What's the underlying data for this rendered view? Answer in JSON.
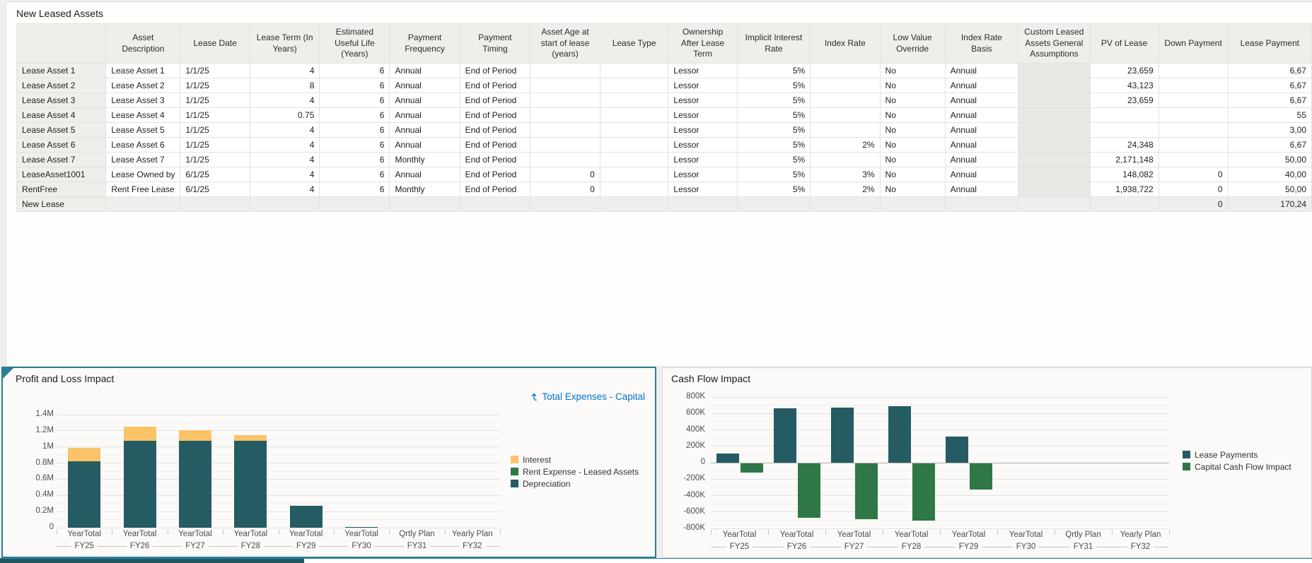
{
  "table": {
    "title": "New Leased Assets",
    "columns": [
      "",
      "Asset Description",
      "Lease Date",
      "Lease Term (In Years)",
      "Estimated Useful Life (Years)",
      "Payment Frequency",
      "Payment Timing",
      "Asset Age at start of lease (years)",
      "Lease Type",
      "Ownership After Lease Term",
      "Implicit Interest Rate",
      "Index Rate",
      "Low Value Override",
      "Index Rate Basis",
      "Custom Leased Assets General Assumptions",
      "PV of Lease",
      "Down Payment",
      "Lease Payment"
    ],
    "rows": [
      {
        "name": "Lease Asset 1",
        "disabled": false,
        "cells": [
          "Lease Asset 1",
          "1/1/25",
          "4",
          "6",
          "Annual",
          "End of Period",
          "",
          "",
          "Lessor",
          "5%",
          "",
          "No",
          "Annual",
          "",
          "23,659",
          "",
          "6,67"
        ]
      },
      {
        "name": "Lease Asset 2",
        "disabled": false,
        "cells": [
          "Lease Asset 2",
          "1/1/25",
          "8",
          "6",
          "Annual",
          "End of Period",
          "",
          "",
          "Lessor",
          "5%",
          "",
          "No",
          "Annual",
          "",
          "43,123",
          "",
          "6,67"
        ]
      },
      {
        "name": "Lease Asset 3",
        "disabled": false,
        "cells": [
          "Lease Asset 3",
          "1/1/25",
          "4",
          "6",
          "Annual",
          "End of Period",
          "",
          "",
          "Lessor",
          "5%",
          "",
          "No",
          "Annual",
          "",
          "23,659",
          "",
          "6,67"
        ]
      },
      {
        "name": "Lease Asset 4",
        "disabled": false,
        "cells": [
          "Lease Asset 4",
          "1/1/25",
          "0.75",
          "6",
          "Annual",
          "End of Period",
          "",
          "",
          "Lessor",
          "5%",
          "",
          "No",
          "Annual",
          "",
          "",
          "",
          "55"
        ]
      },
      {
        "name": "Lease Asset 5",
        "disabled": false,
        "cells": [
          "Lease Asset 5",
          "1/1/25",
          "4",
          "6",
          "Annual",
          "End of Period",
          "",
          "",
          "Lessor",
          "5%",
          "",
          "No",
          "Annual",
          "",
          "",
          "",
          "3,00"
        ]
      },
      {
        "name": "Lease Asset 6",
        "disabled": false,
        "cells": [
          "Lease Asset 6",
          "1/1/25",
          "4",
          "6",
          "Annual",
          "End of Period",
          "",
          "",
          "Lessor",
          "5%",
          "2%",
          "No",
          "Annual",
          "",
          "24,348",
          "",
          "6,67"
        ]
      },
      {
        "name": "Lease Asset 7",
        "disabled": false,
        "cells": [
          "Lease Asset 7",
          "1/1/25",
          "4",
          "6",
          "Monthly",
          "End of Period",
          "",
          "",
          "Lessor",
          "5%",
          "",
          "No",
          "Annual",
          "",
          "2,171,148",
          "",
          "50,00"
        ]
      },
      {
        "name": "LeaseAsset1001",
        "disabled": false,
        "cells": [
          "Lease Owned by",
          "6/1/25",
          "4",
          "6",
          "Annual",
          "End of Period",
          "0",
          "",
          "Lessor",
          "5%",
          "3%",
          "No",
          "Annual",
          "",
          "148,082",
          "0",
          "40,00"
        ]
      },
      {
        "name": "RentFree",
        "disabled": false,
        "cells": [
          "Rent Free Lease",
          "6/1/25",
          "4",
          "6",
          "Monthly",
          "End of Period",
          "0",
          "",
          "Lessor",
          "5%",
          "2%",
          "No",
          "Annual",
          "",
          "1,938,722",
          "0",
          "50,00"
        ]
      },
      {
        "name": "New Lease",
        "disabled": true,
        "cells": [
          "",
          "",
          "",
          "",
          "",
          "",
          "",
          "",
          "",
          "",
          "",
          "",
          "",
          "",
          "",
          "0",
          "170,24"
        ]
      }
    ]
  },
  "chart_data": [
    {
      "type": "stacked-bar",
      "title": "Profit and Loss Impact",
      "context_link": "Total Expenses - Capital",
      "categories": [
        "FY25",
        "FY26",
        "FY27",
        "FY28",
        "FY29",
        "FY30",
        "FY31",
        "FY32"
      ],
      "category_periods": [
        "YearTotal",
        "YearTotal",
        "YearTotal",
        "YearTotal",
        "YearTotal",
        "YearTotal",
        "Qrtly Plan",
        "Yearly Plan"
      ],
      "series": [
        {
          "name": "Interest",
          "color": "#fac36a",
          "values": [
            165000,
            175000,
            125000,
            65000,
            0,
            0,
            0,
            0
          ]
        },
        {
          "name": "Rent Expense - Leased Assets",
          "color": "#2f7746",
          "values": [
            0,
            0,
            0,
            0,
            0,
            0,
            0,
            0
          ]
        },
        {
          "name": "Depreciation",
          "color": "#255c63",
          "values": [
            820000,
            1080000,
            1080000,
            1080000,
            270000,
            10000,
            0,
            0
          ]
        }
      ],
      "ylim": [
        0,
        1400000
      ],
      "ytick_step": 200000,
      "ytick_labels": [
        "1.4M",
        "1.2M",
        "1M",
        "0.8M",
        "0.6M",
        "0.4M",
        "0.2M",
        "0"
      ],
      "legend_position": "right",
      "grid": true
    },
    {
      "type": "bar",
      "title": "Cash Flow Impact",
      "categories": [
        "FY25",
        "FY26",
        "FY27",
        "FY28",
        "FY29",
        "FY30",
        "FY31",
        "FY32"
      ],
      "category_periods": [
        "YearTotal",
        "YearTotal",
        "YearTotal",
        "YearTotal",
        "YearTotal",
        "YearTotal",
        "Qrtly Plan",
        "Yearly Plan"
      ],
      "series": [
        {
          "name": "Lease Payments",
          "color": "#255c63",
          "values": [
            115000,
            660000,
            675000,
            690000,
            315000,
            0,
            0,
            0
          ]
        },
        {
          "name": "Capital Cash Flow Impact",
          "color": "#2f7746",
          "values": [
            -115000,
            -665000,
            -680000,
            -695000,
            -320000,
            0,
            0,
            0
          ]
        }
      ],
      "ylim": [
        -800000,
        800000
      ],
      "ytick_step": 200000,
      "ytick_labels": [
        "800K",
        "600K",
        "400K",
        "200K",
        "0",
        "-200K",
        "-400K",
        "-600K",
        "-800K"
      ],
      "legend_position": "right",
      "grid": true
    }
  ],
  "colors": {
    "accent_border": "#2b7d97",
    "link_blue": "#0572ce",
    "teal_bar": "#255c63",
    "orange_bar": "#fac36a",
    "green_bar": "#2f7746"
  }
}
